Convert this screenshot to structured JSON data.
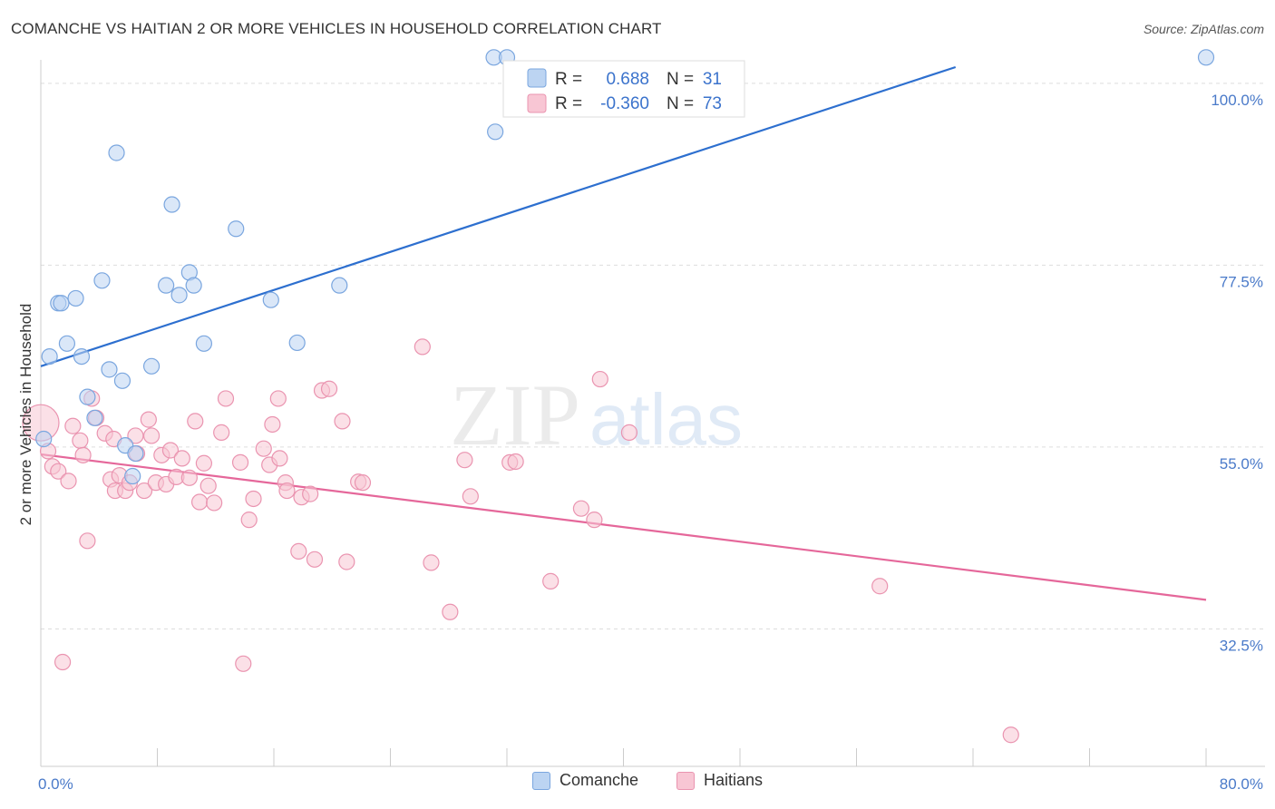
{
  "title": "COMANCHE VS HAITIAN 2 OR MORE VEHICLES IN HOUSEHOLD CORRELATION CHART",
  "source": "Source: ZipAtlas.com",
  "watermark": {
    "zip": "ZIP",
    "atlas": "atlas"
  },
  "colors": {
    "comanche_fill": "#bcd4f2",
    "comanche_stroke": "#7aa6df",
    "comanche_line": "#2d6fcf",
    "haitians_fill": "#f8c6d4",
    "haitians_stroke": "#ea94b0",
    "haitians_line": "#e5679a",
    "tick_text": "#4a7ac9"
  },
  "legend": {
    "rows": [
      {
        "r_label": "R =",
        "r_value": "0.688",
        "n_label": "N =",
        "n_value": "31"
      },
      {
        "r_label": "R =",
        "r_value": "-0.360",
        "n_label": "N =",
        "n_value": "73"
      }
    ]
  },
  "bottom_legend": {
    "comanche": "Comanche",
    "haitians": "Haitians"
  },
  "chart_data": {
    "type": "scatter",
    "title": "COMANCHE VS HAITIAN 2 OR MORE VEHICLES IN HOUSEHOLD CORRELATION CHART",
    "xlabel": "",
    "ylabel": "2 or more Vehicles in Household",
    "xlim": [
      0,
      80
    ],
    "ylim": [
      15.5,
      102
    ],
    "x_tick_labels": [
      "0.0%",
      "80.0%"
    ],
    "y_ticks": [
      32.5,
      55.0,
      77.5,
      100.0
    ],
    "y_tick_labels": [
      "32.5%",
      "55.0%",
      "77.5%",
      "100.0%"
    ],
    "grid": true,
    "legend_position": "top-center",
    "series": [
      {
        "name": "Comanche",
        "r": 0.688,
        "n": 31,
        "trend": {
          "x": [
            0,
            62.8
          ],
          "y": [
            65.0,
            102.0
          ]
        },
        "points": [
          [
            0.2,
            56.0
          ],
          [
            0.6,
            66.2
          ],
          [
            1.2,
            72.8
          ],
          [
            1.4,
            72.8
          ],
          [
            1.8,
            67.8
          ],
          [
            2.4,
            73.4
          ],
          [
            2.8,
            66.2
          ],
          [
            3.2,
            61.2
          ],
          [
            3.7,
            58.6
          ],
          [
            4.2,
            75.6
          ],
          [
            4.7,
            64.6
          ],
          [
            5.2,
            91.4
          ],
          [
            5.6,
            63.2
          ],
          [
            5.8,
            55.2
          ],
          [
            6.3,
            51.4
          ],
          [
            6.5,
            54.2
          ],
          [
            7.6,
            65.0
          ],
          [
            8.6,
            75.0
          ],
          [
            9.0,
            85.0
          ],
          [
            9.5,
            73.8
          ],
          [
            10.2,
            76.6
          ],
          [
            10.5,
            75.0
          ],
          [
            11.2,
            67.8
          ],
          [
            13.4,
            82.0
          ],
          [
            15.8,
            73.2
          ],
          [
            17.6,
            67.9
          ],
          [
            20.5,
            75.0
          ],
          [
            31.1,
            103.2
          ],
          [
            31.2,
            94.0
          ],
          [
            32.0,
            103.2
          ],
          [
            80.0,
            103.2
          ]
        ]
      },
      {
        "name": "Haitians",
        "r": -0.36,
        "n": 73,
        "trend": {
          "x": [
            0,
            80
          ],
          "y": [
            54.1,
            36.1
          ]
        },
        "points": [
          [
            0.0,
            58.0
          ],
          [
            0.5,
            54.5
          ],
          [
            0.8,
            52.6
          ],
          [
            1.2,
            52.0
          ],
          [
            1.5,
            28.4
          ],
          [
            1.9,
            50.8
          ],
          [
            2.2,
            57.6
          ],
          [
            2.7,
            55.8
          ],
          [
            2.9,
            54.0
          ],
          [
            3.2,
            43.4
          ],
          [
            3.5,
            61.0
          ],
          [
            3.8,
            58.6
          ],
          [
            4.4,
            56.7
          ],
          [
            4.8,
            51.0
          ],
          [
            5.0,
            56.0
          ],
          [
            5.1,
            49.6
          ],
          [
            5.4,
            51.5
          ],
          [
            5.8,
            49.6
          ],
          [
            6.1,
            50.6
          ],
          [
            6.5,
            56.4
          ],
          [
            6.6,
            54.2
          ],
          [
            7.1,
            49.6
          ],
          [
            7.4,
            58.4
          ],
          [
            7.6,
            56.4
          ],
          [
            7.9,
            50.6
          ],
          [
            8.3,
            54.0
          ],
          [
            8.6,
            50.4
          ],
          [
            8.9,
            54.6
          ],
          [
            9.3,
            51.3
          ],
          [
            9.7,
            53.6
          ],
          [
            10.2,
            51.2
          ],
          [
            10.6,
            58.2
          ],
          [
            10.9,
            48.2
          ],
          [
            11.2,
            53.0
          ],
          [
            11.5,
            50.2
          ],
          [
            11.9,
            48.1
          ],
          [
            12.4,
            56.8
          ],
          [
            12.7,
            61.0
          ],
          [
            13.7,
            53.1
          ],
          [
            13.9,
            28.2
          ],
          [
            14.3,
            46.0
          ],
          [
            14.6,
            48.6
          ],
          [
            15.3,
            54.8
          ],
          [
            15.7,
            52.8
          ],
          [
            15.9,
            57.8
          ],
          [
            16.3,
            61.0
          ],
          [
            16.4,
            53.6
          ],
          [
            16.8,
            50.6
          ],
          [
            16.9,
            49.6
          ],
          [
            17.7,
            42.1
          ],
          [
            17.9,
            48.8
          ],
          [
            18.5,
            49.2
          ],
          [
            18.8,
            41.1
          ],
          [
            19.3,
            62.0
          ],
          [
            19.8,
            62.2
          ],
          [
            20.7,
            58.2
          ],
          [
            21.0,
            40.8
          ],
          [
            21.8,
            50.7
          ],
          [
            22.1,
            50.6
          ],
          [
            26.2,
            67.4
          ],
          [
            26.8,
            40.7
          ],
          [
            28.1,
            34.6
          ],
          [
            29.1,
            53.4
          ],
          [
            29.5,
            48.9
          ],
          [
            32.2,
            53.1
          ],
          [
            32.6,
            53.2
          ],
          [
            35.0,
            38.4
          ],
          [
            37.1,
            47.4
          ],
          [
            38.0,
            46.0
          ],
          [
            38.4,
            63.4
          ],
          [
            40.4,
            56.8
          ],
          [
            57.6,
            37.8
          ],
          [
            66.6,
            19.4
          ]
        ]
      }
    ]
  }
}
